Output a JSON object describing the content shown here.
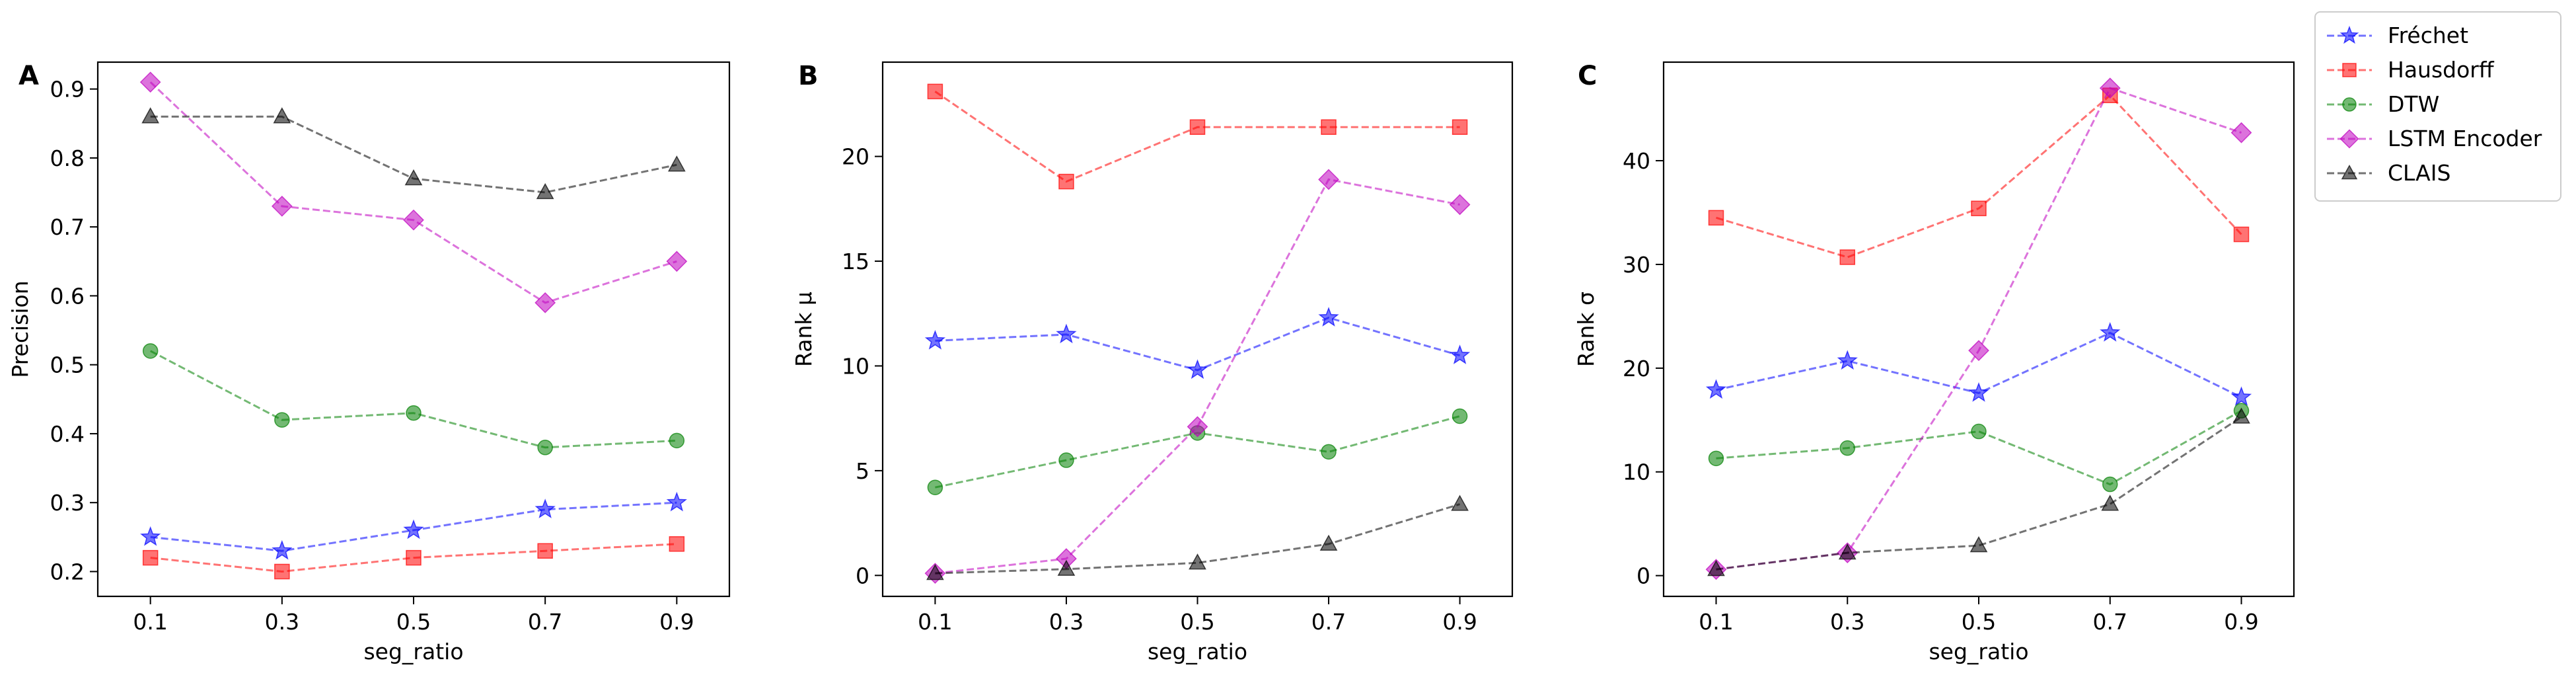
{
  "chart_data": [
    {
      "type": "line",
      "panel_label": "A",
      "xlabel": "seg_ratio",
      "ylabel": "Precision",
      "x": [
        0.1,
        0.3,
        0.5,
        0.7,
        0.9
      ],
      "xticks": [
        "0.1",
        "0.3",
        "0.5",
        "0.7",
        "0.9"
      ],
      "yticks": [
        0.2,
        0.3,
        0.4,
        0.5,
        0.6,
        0.7,
        0.8,
        0.9
      ],
      "yticklabels": [
        "0.2",
        "0.3",
        "0.4",
        "0.5",
        "0.6",
        "0.7",
        "0.8",
        "0.9"
      ],
      "xlim": [
        0.02,
        0.98
      ],
      "ylim": [
        0.164,
        0.939
      ],
      "grid": false,
      "series": [
        {
          "name": "Fréchet",
          "values": [
            0.25,
            0.23,
            0.26,
            0.29,
            0.3
          ]
        },
        {
          "name": "Hausdorff",
          "values": [
            0.22,
            0.2,
            0.22,
            0.23,
            0.24
          ]
        },
        {
          "name": "DTW",
          "values": [
            0.52,
            0.42,
            0.43,
            0.38,
            0.39
          ]
        },
        {
          "name": "LSTM Encoder",
          "values": [
            0.91,
            0.73,
            0.71,
            0.59,
            0.65
          ]
        },
        {
          "name": "CLAIS",
          "values": [
            0.86,
            0.86,
            0.77,
            0.75,
            0.79
          ]
        }
      ]
    },
    {
      "type": "line",
      "panel_label": "B",
      "xlabel": "seg_ratio",
      "ylabel": "Rank μ",
      "x": [
        0.1,
        0.3,
        0.5,
        0.7,
        0.9
      ],
      "xticks": [
        "0.1",
        "0.3",
        "0.5",
        "0.7",
        "0.9"
      ],
      "yticks": [
        0,
        5,
        10,
        15,
        20
      ],
      "yticklabels": [
        "0",
        "5",
        "10",
        "15",
        "20"
      ],
      "xlim": [
        0.02,
        0.98
      ],
      "ylim": [
        -1.0,
        24.5
      ],
      "grid": false,
      "series": [
        {
          "name": "Fréchet",
          "values": [
            11.2,
            11.5,
            9.8,
            12.3,
            10.5
          ]
        },
        {
          "name": "Hausdorff",
          "values": [
            23.1,
            18.8,
            21.4,
            21.4,
            21.4
          ]
        },
        {
          "name": "DTW",
          "values": [
            4.2,
            5.5,
            6.8,
            5.9,
            7.6
          ]
        },
        {
          "name": "LSTM Encoder",
          "values": [
            0.1,
            0.8,
            7.1,
            18.9,
            17.7
          ]
        },
        {
          "name": "CLAIS",
          "values": [
            0.1,
            0.3,
            0.6,
            1.5,
            3.4
          ]
        }
      ]
    },
    {
      "type": "line",
      "panel_label": "C",
      "xlabel": "seg_ratio",
      "ylabel": "Rank σ",
      "x": [
        0.1,
        0.3,
        0.5,
        0.7,
        0.9
      ],
      "xticks": [
        "0.1",
        "0.3",
        "0.5",
        "0.7",
        "0.9"
      ],
      "yticks": [
        0,
        10,
        20,
        30,
        40
      ],
      "yticklabels": [
        "0",
        "10",
        "20",
        "30",
        "40"
      ],
      "xlim": [
        0.02,
        0.98
      ],
      "ylim": [
        -2.0,
        49.5
      ],
      "grid": false,
      "series": [
        {
          "name": "Fréchet",
          "values": [
            17.9,
            20.7,
            17.6,
            23.4,
            17.2
          ]
        },
        {
          "name": "Hausdorff",
          "values": [
            34.5,
            30.7,
            35.4,
            46.3,
            32.9
          ]
        },
        {
          "name": "DTW",
          "values": [
            11.3,
            12.3,
            13.9,
            8.8,
            15.9
          ]
        },
        {
          "name": "LSTM Encoder",
          "values": [
            0.6,
            2.2,
            21.7,
            47.0,
            42.7
          ]
        },
        {
          "name": "CLAIS",
          "values": [
            0.6,
            2.2,
            2.9,
            6.9,
            15.3
          ]
        }
      ]
    }
  ],
  "legend": {
    "placement": "top-right",
    "entries": [
      "Fréchet",
      "Hausdorff",
      "DTW",
      "LSTM Encoder",
      "CLAIS"
    ]
  },
  "series_style": {
    "Fréchet": {
      "color": "#0000ff",
      "marker": "star"
    },
    "Hausdorff": {
      "color": "#ff0000",
      "marker": "square"
    },
    "DTW": {
      "color": "#008000",
      "marker": "circle"
    },
    "LSTM Encoder": {
      "color": "#bf00bf",
      "marker": "diamond"
    },
    "CLAIS": {
      "color": "#000000",
      "marker": "triangle"
    }
  }
}
